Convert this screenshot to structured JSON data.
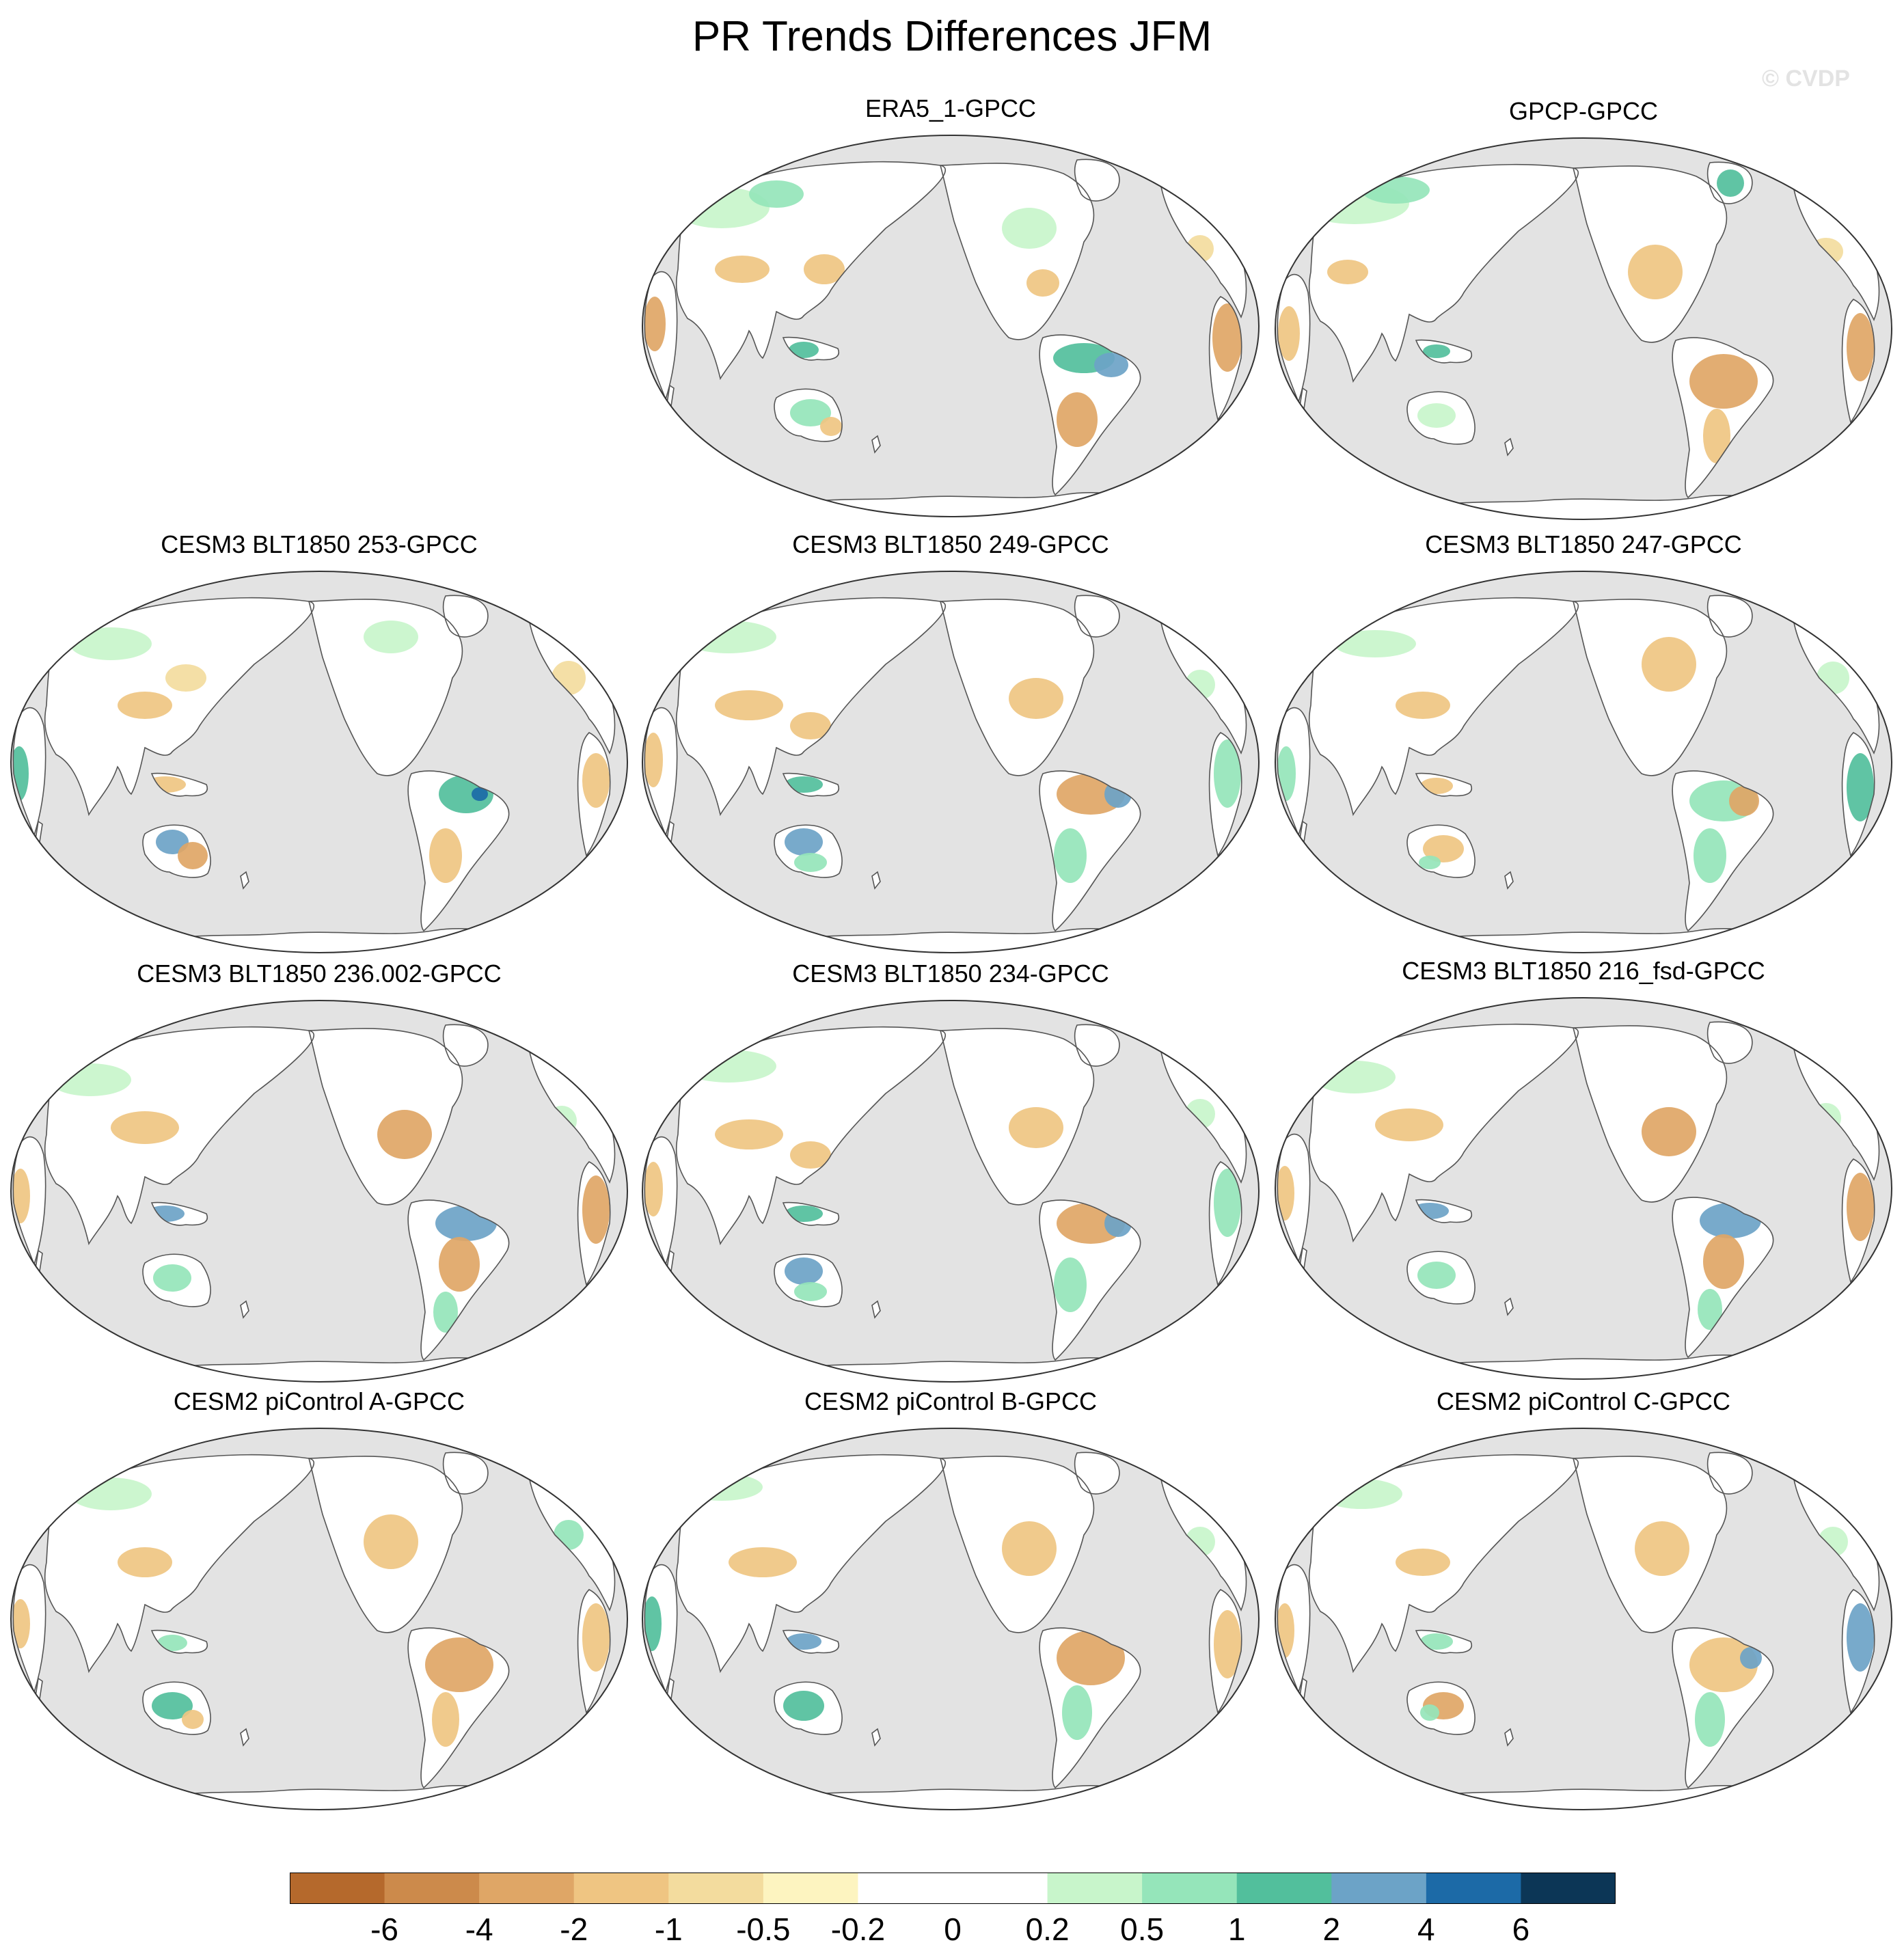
{
  "title": "PR Trends Differences JFM",
  "watermark": "© CVDP",
  "colors": {
    "ocean": "#e3e3e3",
    "coastline": "#555555",
    "scale": [
      "#b5692c",
      "#cc8a4b",
      "#dfa666",
      "#efc582",
      "#f3dc9e",
      "#fdf4c0",
      "#ffffff",
      "#ffffff",
      "#c8f5cb",
      "#95e5ba",
      "#52bf9c",
      "#6ca3c7",
      "#1c6aa7",
      "#0c3656"
    ]
  },
  "colorbar": {
    "tick_labels": [
      "-6",
      "-4",
      "-2",
      "-1",
      "-0.5",
      "-0.2",
      "0",
      "0.2",
      "0.5",
      "1",
      "2",
      "4",
      "6"
    ]
  },
  "panels": [
    {
      "title": "ERA5_1-GPCC",
      "style": "era5"
    },
    {
      "title": "GPCP-GPCC",
      "style": "gpcp"
    },
    {
      "title": "CESM3 BLT1850 253-GPCC",
      "style": "m1"
    },
    {
      "title": "CESM3 BLT1850 249-GPCC",
      "style": "m2"
    },
    {
      "title": "CESM3 BLT1850 247-GPCC",
      "style": "m3"
    },
    {
      "title": "CESM3 BLT1850 236.002-GPCC",
      "style": "m4"
    },
    {
      "title": "CESM3 BLT1850 234-GPCC",
      "style": "m2"
    },
    {
      "title": "CESM3 BLT1850 216_fsd-GPCC",
      "style": "m4"
    },
    {
      "title": "CESM2 piControl A-GPCC",
      "style": "p1"
    },
    {
      "title": "CESM2 piControl B-GPCC",
      "style": "p2"
    },
    {
      "title": "CESM2 piControl C-GPCC",
      "style": "p3"
    }
  ]
}
